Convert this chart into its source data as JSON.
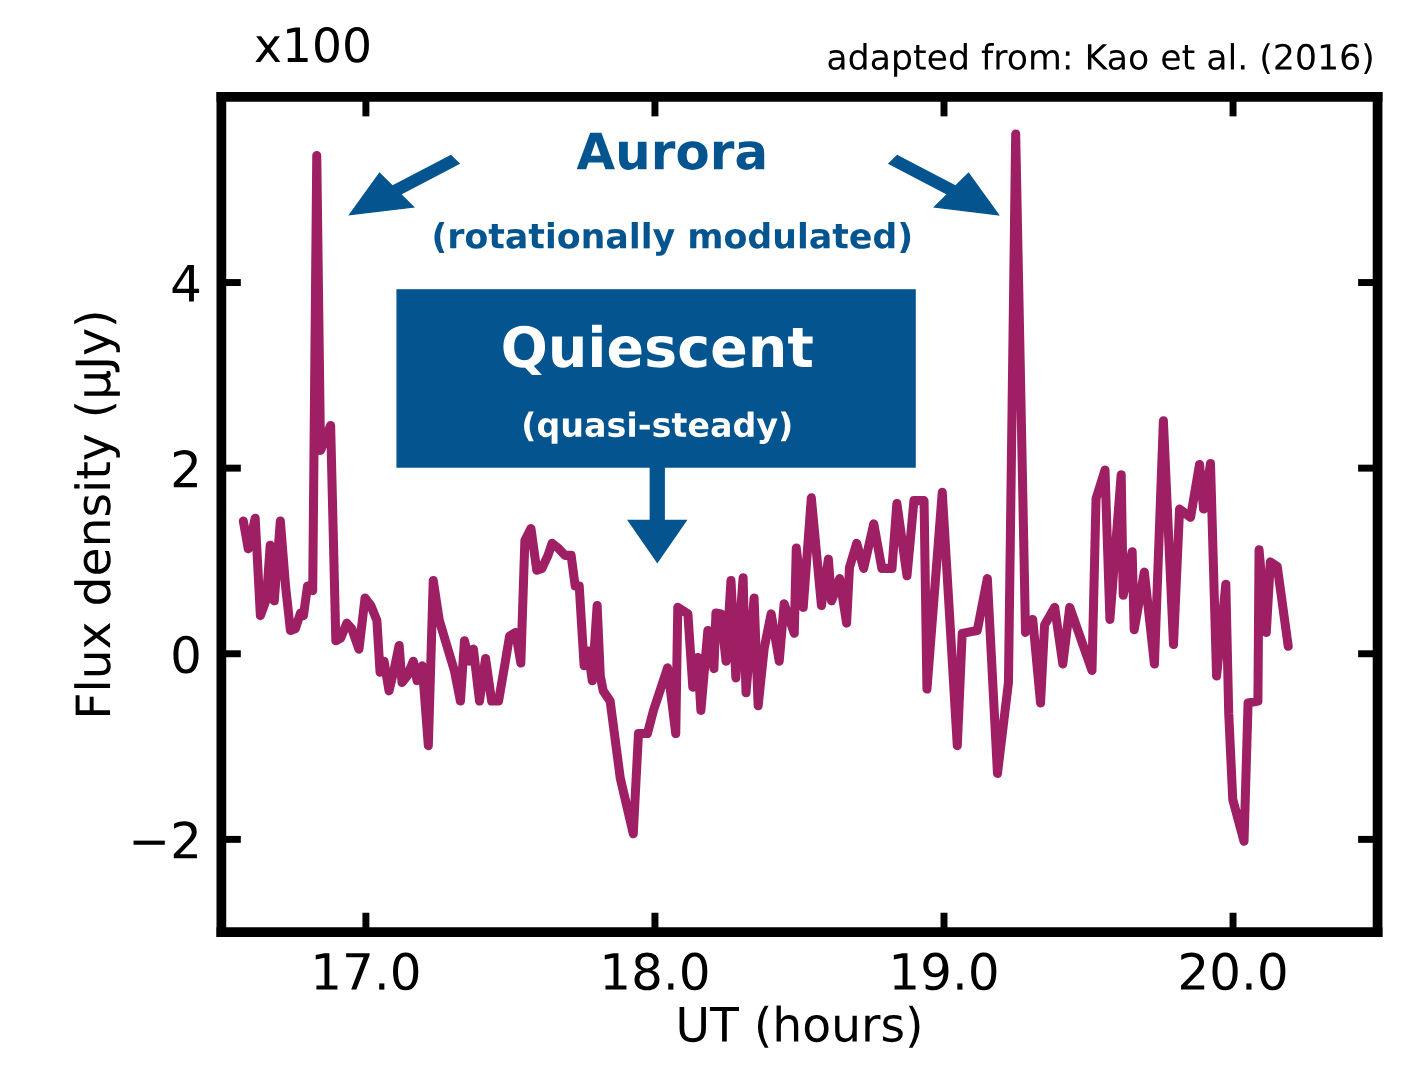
{
  "chart_data": {
    "type": "line",
    "xlabel": "UT (hours)",
    "ylabel": "Flux density (μJy)",
    "annotations": [
      "x100",
      "adapted from: Kao et al. (2016)",
      "Aurora",
      "(rotationally modulated)",
      "Quiescent",
      "(quasi-steady)"
    ],
    "xlim": [
      16.5,
      20.5
    ],
    "ylim": [
      -3,
      6
    ],
    "xticks": [
      {
        "value": 17,
        "label": "17.0"
      },
      {
        "value": 18,
        "label": "18.0"
      },
      {
        "value": 19,
        "label": "19.0"
      },
      {
        "value": 20,
        "label": "20.0"
      }
    ],
    "yticks": [
      {
        "value": -2,
        "label": "−2"
      },
      0,
      2,
      4
    ],
    "grid": false,
    "marker": "none",
    "line_style": "solid",
    "series": [
      {
        "color": "#9e1f63",
        "x": [
          16.576,
          16.593,
          16.617,
          16.635,
          16.656,
          16.669,
          16.683,
          16.704,
          16.722,
          16.739,
          16.756,
          16.774,
          16.784,
          16.798,
          16.816,
          16.83,
          16.843,
          16.878,
          16.896,
          16.913,
          16.934,
          16.951,
          16.976,
          16.997,
          17.017,
          17.038,
          17.049,
          17.063,
          17.08,
          17.097,
          17.115,
          17.125,
          17.143,
          17.164,
          17.177,
          17.195,
          17.216,
          17.233,
          17.254,
          17.275,
          17.306,
          17.327,
          17.341,
          17.358,
          17.372,
          17.393,
          17.414,
          17.435,
          17.459,
          17.48,
          17.497,
          17.518,
          17.536,
          17.55,
          17.571,
          17.591,
          17.609,
          17.63,
          17.644,
          17.665,
          17.689,
          17.71,
          17.724,
          17.738,
          17.755,
          17.769,
          17.783,
          17.8,
          17.811,
          17.821,
          17.845,
          17.88,
          17.925,
          17.943,
          17.974,
          17.995,
          18.044,
          18.072,
          18.079,
          18.114,
          18.131,
          18.148,
          18.159,
          18.183,
          18.204,
          18.211,
          18.228,
          18.246,
          18.263,
          18.28,
          18.305,
          18.315,
          18.343,
          18.357,
          18.378,
          18.402,
          18.43,
          18.447,
          18.482,
          18.489,
          18.513,
          18.541,
          18.576,
          18.6,
          18.611,
          18.639,
          18.663,
          18.673,
          18.698,
          18.722,
          18.757,
          18.785,
          18.82,
          18.837,
          18.872,
          18.896,
          18.931,
          18.941,
          18.994,
          19.046,
          19.063,
          19.115,
          19.15,
          19.185,
          19.223,
          19.248,
          19.282,
          19.307,
          19.334,
          19.348,
          19.383,
          19.411,
          19.435,
          19.512,
          19.526,
          19.557,
          19.574,
          19.613,
          19.62,
          19.651,
          19.658,
          19.693,
          19.728,
          19.759,
          19.794,
          19.815,
          19.853,
          19.884,
          19.898,
          19.922,
          19.943,
          19.975,
          19.985,
          19.999,
          20.038,
          20.052,
          20.086,
          20.09,
          20.115,
          20.129,
          20.153,
          20.191
        ],
        "values": [
          1.43,
          1.13,
          1.46,
          0.41,
          0.59,
          1.17,
          0.57,
          1.43,
          0.73,
          0.25,
          0.27,
          0.44,
          0.41,
          0.73,
          0.68,
          5.37,
          2.19,
          2.46,
          0.14,
          0.17,
          0.33,
          0.27,
          0.05,
          0.6,
          0.52,
          0.36,
          -0.2,
          -0.08,
          -0.4,
          -0.18,
          0.09,
          -0.31,
          -0.24,
          -0.08,
          -0.29,
          -0.13,
          -0.99,
          0.79,
          0.36,
          0.14,
          -0.18,
          -0.51,
          0.14,
          -0.08,
          0.05,
          -0.51,
          -0.05,
          -0.51,
          -0.51,
          -0.13,
          0.19,
          0.23,
          -0.1,
          1.22,
          1.35,
          0.9,
          0.92,
          1.06,
          1.19,
          1.14,
          1.06,
          1.06,
          0.73,
          0.73,
          -0.13,
          0.03,
          -0.29,
          0.52,
          -0.24,
          -0.4,
          -0.51,
          -1.34,
          -1.94,
          -0.86,
          -0.86,
          -0.61,
          -0.15,
          -0.86,
          0.5,
          0.43,
          -0.36,
          -0.04,
          -0.61,
          0.25,
          -0.16,
          0.44,
          0.43,
          -0.08,
          0.79,
          -0.26,
          0.82,
          -0.42,
          0.6,
          -0.56,
          0.06,
          0.43,
          -0.08,
          0.54,
          0.22,
          1.14,
          0.5,
          1.68,
          0.52,
          1.02,
          0.57,
          0.81,
          0.33,
          0.93,
          1.19,
          0.92,
          1.4,
          0.92,
          0.92,
          1.62,
          0.84,
          1.65,
          1.65,
          -0.38,
          1.74,
          -0.99,
          0.22,
          0.25,
          0.81,
          -1.29,
          -0.31,
          5.6,
          0.23,
          0.37,
          -0.53,
          0.31,
          0.5,
          -0.11,
          0.5,
          -0.18,
          1.67,
          1.98,
          0.37,
          1.93,
          0.63,
          1.1,
          0.26,
          0.88,
          -0.11,
          2.51,
          0.1,
          1.56,
          1.47,
          2.04,
          1.56,
          2.05,
          -0.24,
          0.75,
          -0.64,
          -1.57,
          -2.02,
          -0.53,
          -0.51,
          1.12,
          0.23,
          0.99,
          0.94,
          0.08
        ]
      }
    ]
  }
}
